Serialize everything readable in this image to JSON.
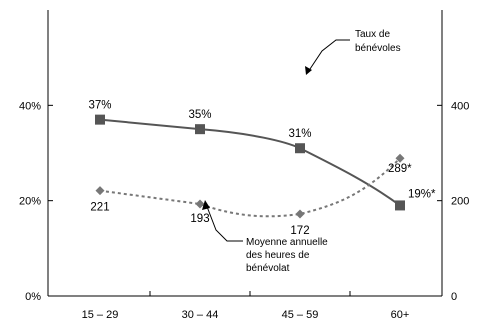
{
  "chart_data": {
    "type": "line",
    "categories": [
      "15 – 29",
      "30 – 44",
      "45 – 59",
      "60+"
    ],
    "y_left": {
      "range": [
        0,
        60
      ],
      "ticks": [
        0,
        20,
        40
      ],
      "tick_labels": [
        "0%",
        "20%",
        "40%"
      ]
    },
    "y_right": {
      "range": [
        0,
        600
      ],
      "ticks": [
        0,
        200,
        400
      ],
      "tick_labels": [
        "0",
        "200",
        "400"
      ]
    },
    "grid": false,
    "series": [
      {
        "axis": "left",
        "style": "solid",
        "marker": "square",
        "color": "#555555",
        "values": [
          37,
          35,
          31,
          19
        ],
        "labels": [
          "37%",
          "35%",
          "31%",
          "19%*"
        ]
      },
      {
        "axis": "right",
        "style": "dotted",
        "marker": "diamond",
        "color": "#777777",
        "values": [
          221,
          193,
          172,
          289
        ],
        "labels": [
          "221",
          "193",
          "172",
          "289*"
        ]
      }
    ],
    "annotations": [
      {
        "lines": [
          "Taux de",
          "bénévoles"
        ]
      },
      {
        "lines": [
          "Moyenne annuelle",
          "des heures de",
          "bénévolat"
        ]
      }
    ]
  }
}
